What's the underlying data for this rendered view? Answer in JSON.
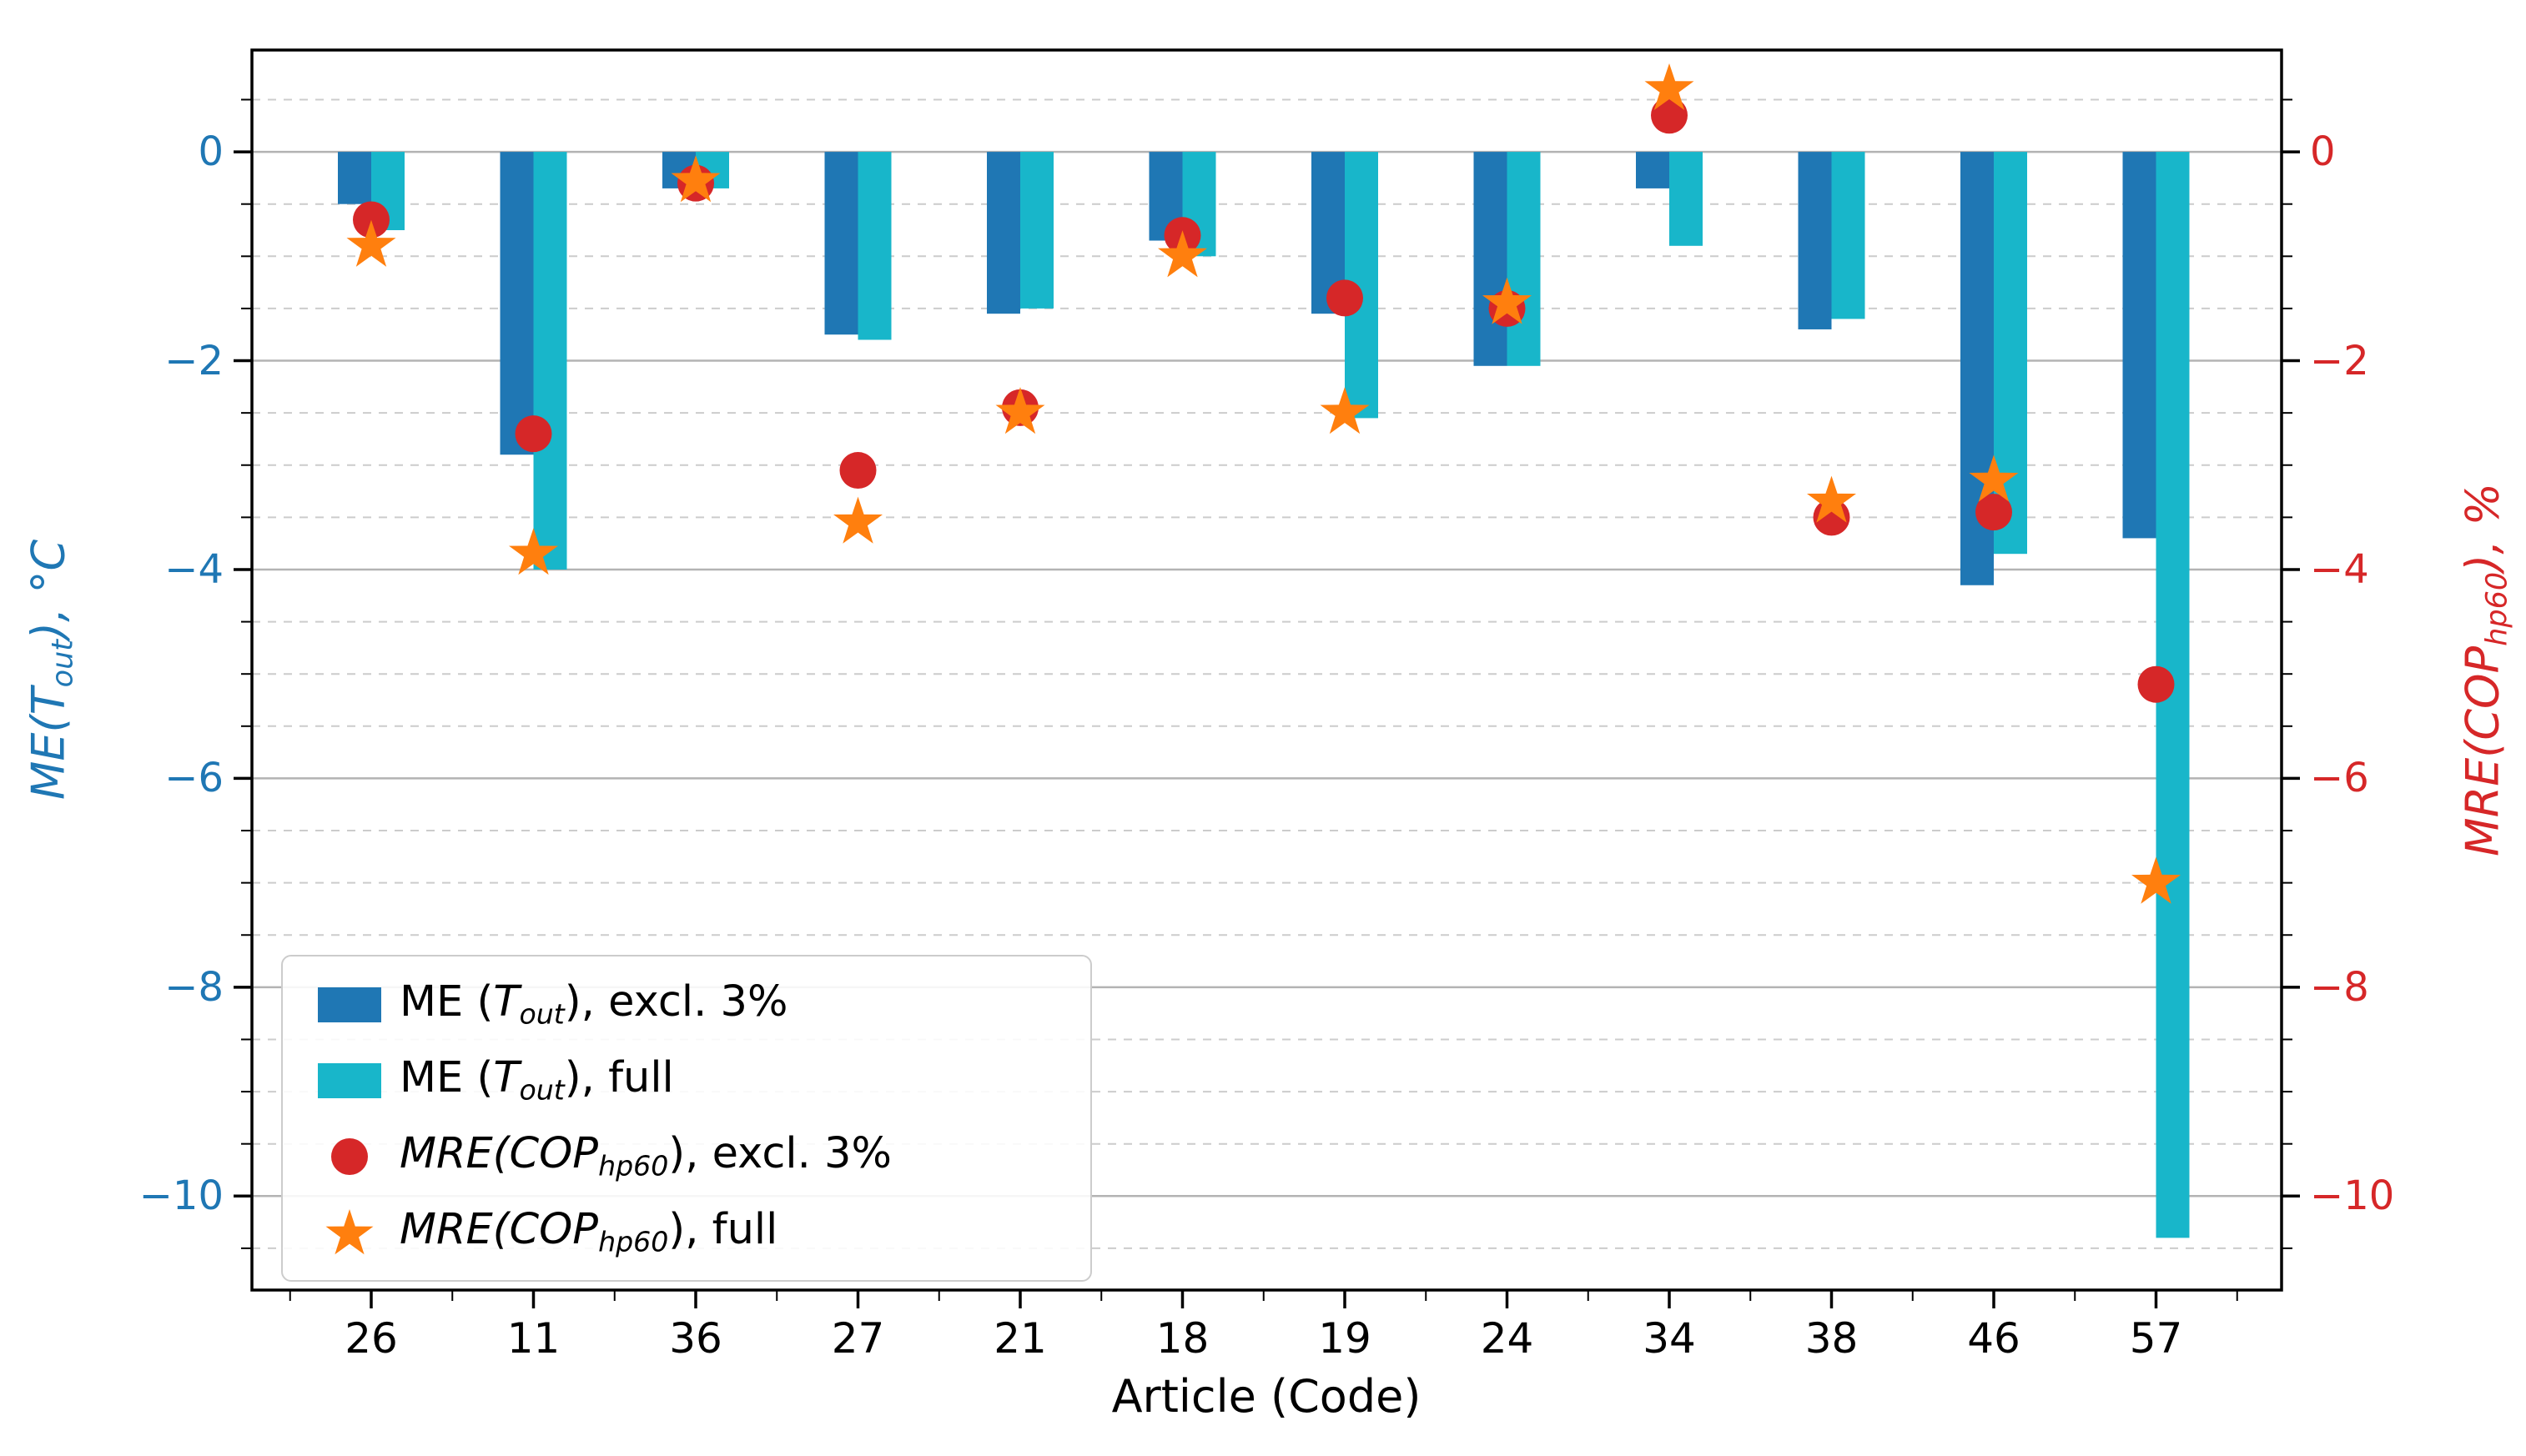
{
  "chart_data": {
    "type": "bar",
    "title": "",
    "xlabel": "Article (Code)",
    "ylabel_left_plain": "ME(T_out), °C",
    "ylabel_right_plain": "MRE(COP_hp60), %",
    "ylabel_left_parts": [
      {
        "text": "ME(",
        "italic": true
      },
      {
        "text": "T",
        "italic": true
      },
      {
        "text": "out",
        "italic": true,
        "sub": true
      },
      {
        "text": "), °C",
        "italic": true
      }
    ],
    "ylabel_right_parts": [
      {
        "text": "MRE(COP",
        "italic": true
      },
      {
        "text": "hp60",
        "italic": true,
        "sub": true
      },
      {
        "text": "), %",
        "italic": true
      }
    ],
    "categories": [
      "26",
      "11",
      "36",
      "27",
      "21",
      "18",
      "19",
      "24",
      "34",
      "38",
      "46",
      "57"
    ],
    "series": [
      {
        "name": "ME (T_out), excl. 3%",
        "kind": "bar",
        "axis": "left",
        "color": "#1f77b4",
        "values": [
          -0.5,
          -2.9,
          -0.35,
          -1.75,
          -1.55,
          -0.85,
          -1.55,
          -2.05,
          -0.35,
          -1.7,
          -4.15,
          -3.7
        ]
      },
      {
        "name": "ME (T_out), full",
        "kind": "bar",
        "axis": "left",
        "color": "#18b6ca",
        "values": [
          -0.75,
          -4.0,
          -0.35,
          -1.8,
          -1.5,
          -1.0,
          -2.55,
          -2.05,
          -0.9,
          -1.6,
          -3.85,
          -10.4
        ]
      },
      {
        "name": "MRE(COP_hp60), excl. 3%",
        "kind": "circle",
        "axis": "right",
        "color": "#d62728",
        "values": [
          -0.65,
          -2.7,
          -0.3,
          -3.05,
          -2.45,
          -0.8,
          -1.4,
          -1.5,
          0.35,
          -3.5,
          -3.45,
          -5.1
        ]
      },
      {
        "name": "MRE(COP_hp60), full",
        "kind": "star",
        "axis": "right",
        "color": "#ff7f0e",
        "values": [
          -0.9,
          -3.85,
          -0.28,
          -3.55,
          -2.5,
          -1.0,
          -2.5,
          -1.45,
          0.6,
          -3.35,
          -3.15,
          -7.0
        ]
      }
    ],
    "legend": [
      {
        "swatch": "bar-blue",
        "parts": [
          {
            "text": "ME (",
            "italic": false
          },
          {
            "text": "T",
            "italic": true
          },
          {
            "text": "out",
            "italic": true,
            "sub": true
          },
          {
            "text": "), excl. 3%",
            "italic": false
          }
        ]
      },
      {
        "swatch": "bar-cyan",
        "parts": [
          {
            "text": "ME (",
            "italic": false
          },
          {
            "text": "T",
            "italic": true
          },
          {
            "text": "out",
            "italic": true,
            "sub": true
          },
          {
            "text": "), full",
            "italic": false
          }
        ]
      },
      {
        "swatch": "circle-red",
        "parts": [
          {
            "text": "MRE(COP",
            "italic": true
          },
          {
            "text": "hp60",
            "italic": true,
            "sub": true
          },
          {
            "text": "), excl. 3%",
            "italic": false
          }
        ]
      },
      {
        "swatch": "star-orange",
        "parts": [
          {
            "text": "MRE(COP",
            "italic": true
          },
          {
            "text": "hp60",
            "italic": true,
            "sub": true
          },
          {
            "text": "), full",
            "italic": false
          }
        ]
      }
    ],
    "yticks": {
      "values": [
        0,
        -2,
        -4,
        -6,
        -8,
        -10
      ],
      "labels": [
        "0",
        "−2",
        "−4",
        "−6",
        "−8",
        "−10"
      ]
    },
    "ylim": [
      -10.9,
      0.975
    ],
    "minor_step": 0.5,
    "grid": {
      "major_color": "#b3b3b3",
      "minor_color": "#cccccc",
      "minor_dashed": true
    },
    "colors": {
      "left_axis_text": "#1f77b4",
      "right_axis_text": "#d62728",
      "x_axis_text": "#000000",
      "bar_excl": "#1f77b4",
      "bar_full": "#18b6ca",
      "marker_excl": "#d62728",
      "marker_full": "#ff7f0e",
      "spine": "#000000"
    }
  }
}
